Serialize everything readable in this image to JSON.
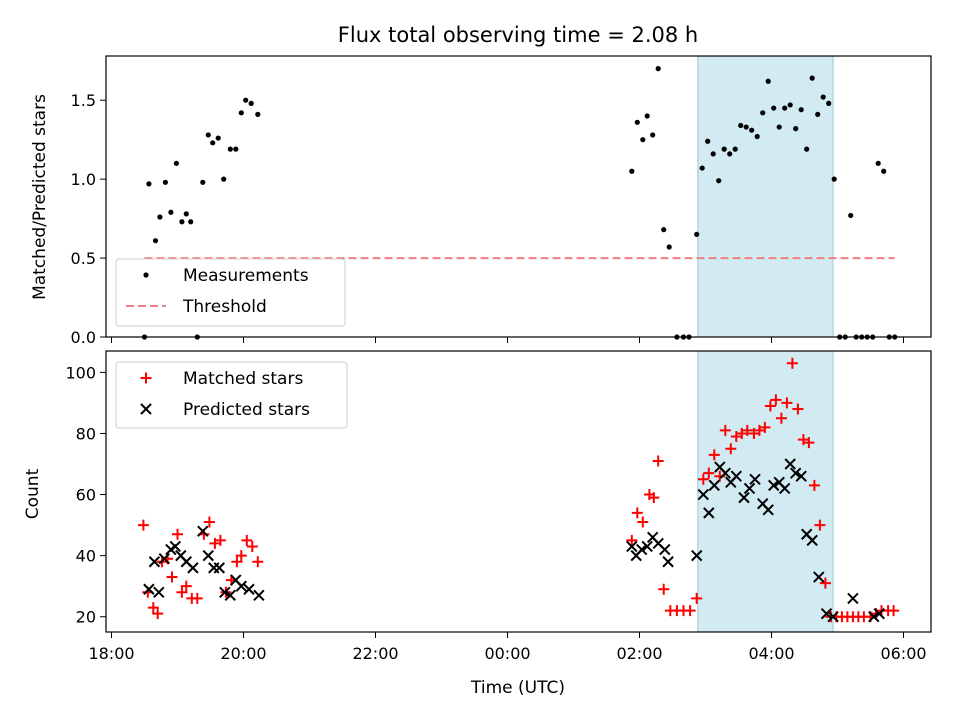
{
  "chart_data": [
    {
      "type": "scatter",
      "title": "Flux total observing time = 2.08 h",
      "xlabel": "",
      "ylabel": "Matched/Predicted stars",
      "xlim": [
        "17:55",
        "06:25"
      ],
      "ylim": [
        0,
        1.78
      ],
      "yticks": [
        "0.0",
        "0.5",
        "1.0",
        "1.5"
      ],
      "grid": false,
      "legend_position": "lower-left",
      "highlight_span": [
        "02:53",
        "04:56"
      ],
      "highlight_color": "#add8e6",
      "series": [
        {
          "name": "Measurements",
          "marker": "dot",
          "color": "#000000",
          "points": [
            [
              "18:30",
              0.0
            ],
            [
              "18:34",
              0.97
            ],
            [
              "18:40",
              0.61
            ],
            [
              "18:44",
              0.76
            ],
            [
              "18:49",
              0.98
            ],
            [
              "18:54",
              0.79
            ],
            [
              "18:59",
              1.1
            ],
            [
              "19:04",
              0.73
            ],
            [
              "19:08",
              0.78
            ],
            [
              "19:12",
              0.73
            ],
            [
              "19:18",
              0.0
            ],
            [
              "19:23",
              0.98
            ],
            [
              "19:28",
              1.28
            ],
            [
              "19:32",
              1.23
            ],
            [
              "19:37",
              1.26
            ],
            [
              "19:42",
              1.0
            ],
            [
              "19:48",
              1.19
            ],
            [
              "19:53",
              1.19
            ],
            [
              "19:58",
              1.42
            ],
            [
              "20:02",
              1.5
            ],
            [
              "20:07",
              1.48
            ],
            [
              "20:13",
              1.41
            ],
            [
              "01:53",
              1.05
            ],
            [
              "01:58",
              1.36
            ],
            [
              "02:03",
              1.25
            ],
            [
              "02:07",
              1.4
            ],
            [
              "02:12",
              1.28
            ],
            [
              "02:17",
              1.7
            ],
            [
              "02:22",
              0.68
            ],
            [
              "02:27",
              0.57
            ],
            [
              "02:34",
              0.0
            ],
            [
              "02:40",
              0.0
            ],
            [
              "02:45",
              0.0
            ],
            [
              "02:52",
              0.65
            ],
            [
              "02:57",
              1.07
            ],
            [
              "03:02",
              1.24
            ],
            [
              "03:07",
              1.16
            ],
            [
              "03:12",
              0.99
            ],
            [
              "03:17",
              1.19
            ],
            [
              "03:22",
              1.16
            ],
            [
              "03:27",
              1.19
            ],
            [
              "03:32",
              1.34
            ],
            [
              "03:37",
              1.33
            ],
            [
              "03:42",
              1.31
            ],
            [
              "03:47",
              1.27
            ],
            [
              "03:52",
              1.42
            ],
            [
              "03:57",
              1.62
            ],
            [
              "04:02",
              1.45
            ],
            [
              "04:07",
              1.33
            ],
            [
              "04:12",
              1.45
            ],
            [
              "04:17",
              1.47
            ],
            [
              "04:22",
              1.32
            ],
            [
              "04:27",
              1.44
            ],
            [
              "04:32",
              1.19
            ],
            [
              "04:37",
              1.64
            ],
            [
              "04:42",
              1.41
            ],
            [
              "04:47",
              1.52
            ],
            [
              "04:52",
              1.48
            ],
            [
              "04:57",
              1.0
            ],
            [
              "05:02",
              0.0
            ],
            [
              "05:07",
              0.0
            ],
            [
              "05:12",
              0.77
            ],
            [
              "05:17",
              0.0
            ],
            [
              "05:22",
              0.0
            ],
            [
              "05:27",
              0.0
            ],
            [
              "05:32",
              0.0
            ],
            [
              "05:37",
              1.1
            ],
            [
              "05:42",
              1.05
            ],
            [
              "05:47",
              0.0
            ],
            [
              "05:52",
              0.0
            ]
          ]
        },
        {
          "name": "Threshold",
          "marker": "dashed-line",
          "color": "#f08080",
          "points": [
            [
              "18:30",
              0.5
            ],
            [
              "05:52",
              0.5
            ]
          ]
        }
      ]
    },
    {
      "type": "scatter",
      "title": "",
      "xlabel": "Time (UTC)",
      "ylabel": "Count",
      "xlim": [
        "17:55",
        "06:25"
      ],
      "ylim": [
        15,
        107
      ],
      "xticks": [
        "18:00",
        "20:00",
        "22:00",
        "00:00",
        "02:00",
        "04:00",
        "06:00"
      ],
      "yticks": [
        "20",
        "40",
        "60",
        "80",
        "100"
      ],
      "grid": false,
      "legend_position": "upper-left",
      "highlight_span": [
        "02:53",
        "04:56"
      ],
      "highlight_color": "#add8e6",
      "series": [
        {
          "name": "Matched stars",
          "marker": "plus",
          "color": "#ff0000",
          "points": [
            [
              "18:29",
              50
            ],
            [
              "18:33",
              28
            ],
            [
              "18:38",
              23
            ],
            [
              "18:42",
              21
            ],
            [
              "18:46",
              38
            ],
            [
              "18:51",
              39
            ],
            [
              "18:55",
              33
            ],
            [
              "19:00",
              47
            ],
            [
              "19:04",
              28
            ],
            [
              "19:08",
              30
            ],
            [
              "19:13",
              26
            ],
            [
              "19:18",
              26
            ],
            [
              "19:24",
              47
            ],
            [
              "19:29",
              51
            ],
            [
              "19:34",
              44
            ],
            [
              "19:39",
              45
            ],
            [
              "19:44",
              28
            ],
            [
              "19:49",
              32
            ],
            [
              "19:54",
              38
            ],
            [
              "19:58",
              40
            ],
            [
              "20:03",
              45
            ],
            [
              "20:08",
              43
            ],
            [
              "20:13",
              38
            ],
            [
              "01:53",
              45
            ],
            [
              "01:58",
              54
            ],
            [
              "02:03",
              51
            ],
            [
              "02:09",
              60
            ],
            [
              "02:13",
              59
            ],
            [
              "02:17",
              71
            ],
            [
              "02:22",
              29
            ],
            [
              "02:28",
              22
            ],
            [
              "02:34",
              22
            ],
            [
              "02:40",
              22
            ],
            [
              "02:46",
              22
            ],
            [
              "02:52",
              26
            ],
            [
              "02:58",
              65
            ],
            [
              "03:03",
              67
            ],
            [
              "03:08",
              73
            ],
            [
              "03:13",
              66
            ],
            [
              "03:18",
              81
            ],
            [
              "03:23",
              75
            ],
            [
              "03:28",
              79
            ],
            [
              "03:33",
              80
            ],
            [
              "03:38",
              81
            ],
            [
              "03:44",
              80
            ],
            [
              "03:49",
              81
            ],
            [
              "03:54",
              82
            ],
            [
              "03:59",
              89
            ],
            [
              "04:04",
              91
            ],
            [
              "04:09",
              85
            ],
            [
              "04:14",
              90
            ],
            [
              "04:19",
              103
            ],
            [
              "04:24",
              88
            ],
            [
              "04:29",
              78
            ],
            [
              "04:34",
              77
            ],
            [
              "04:39",
              63
            ],
            [
              "04:44",
              50
            ],
            [
              "04:49",
              31
            ],
            [
              "04:54",
              20
            ],
            [
              "04:59",
              20
            ],
            [
              "05:04",
              20
            ],
            [
              "05:09",
              20
            ],
            [
              "05:14",
              20
            ],
            [
              "05:19",
              20
            ],
            [
              "05:24",
              20
            ],
            [
              "05:30",
              20
            ],
            [
              "05:35",
              21
            ],
            [
              "05:40",
              22
            ],
            [
              "05:46",
              22
            ],
            [
              "05:51",
              22
            ]
          ]
        },
        {
          "name": "Predicted stars",
          "marker": "x",
          "color": "#000000",
          "points": [
            [
              "18:34",
              29
            ],
            [
              "18:39",
              38
            ],
            [
              "18:43",
              28
            ],
            [
              "18:48",
              39
            ],
            [
              "18:54",
              42
            ],
            [
              "18:58",
              43
            ],
            [
              "19:03",
              40
            ],
            [
              "19:08",
              38
            ],
            [
              "19:14",
              36
            ],
            [
              "19:23",
              48
            ],
            [
              "19:28",
              40
            ],
            [
              "19:33",
              36
            ],
            [
              "19:38",
              36
            ],
            [
              "19:43",
              28
            ],
            [
              "19:48",
              27
            ],
            [
              "19:53",
              32
            ],
            [
              "19:58",
              30
            ],
            [
              "20:05",
              29
            ],
            [
              "20:14",
              27
            ],
            [
              "01:53",
              43
            ],
            [
              "01:57",
              40
            ],
            [
              "02:02",
              42
            ],
            [
              "02:07",
              43
            ],
            [
              "02:12",
              46
            ],
            [
              "02:17",
              44
            ],
            [
              "02:23",
              42
            ],
            [
              "02:26",
              38
            ],
            [
              "02:52",
              40
            ],
            [
              "02:58",
              60
            ],
            [
              "03:03",
              54
            ],
            [
              "03:08",
              63
            ],
            [
              "03:13",
              69
            ],
            [
              "03:18",
              67
            ],
            [
              "03:23",
              64
            ],
            [
              "03:28",
              66
            ],
            [
              "03:35",
              59
            ],
            [
              "03:40",
              62
            ],
            [
              "03:45",
              65
            ],
            [
              "03:52",
              57
            ],
            [
              "03:57",
              55
            ],
            [
              "04:02",
              63
            ],
            [
              "04:07",
              64
            ],
            [
              "04:12",
              62
            ],
            [
              "04:17",
              70
            ],
            [
              "04:22",
              67
            ],
            [
              "04:27",
              66
            ],
            [
              "04:32",
              47
            ],
            [
              "04:37",
              45
            ],
            [
              "04:43",
              33
            ],
            [
              "04:50",
              21
            ],
            [
              "04:56",
              20
            ],
            [
              "05:14",
              26
            ],
            [
              "05:33",
              20
            ],
            [
              "05:38",
              21
            ]
          ]
        }
      ]
    }
  ]
}
